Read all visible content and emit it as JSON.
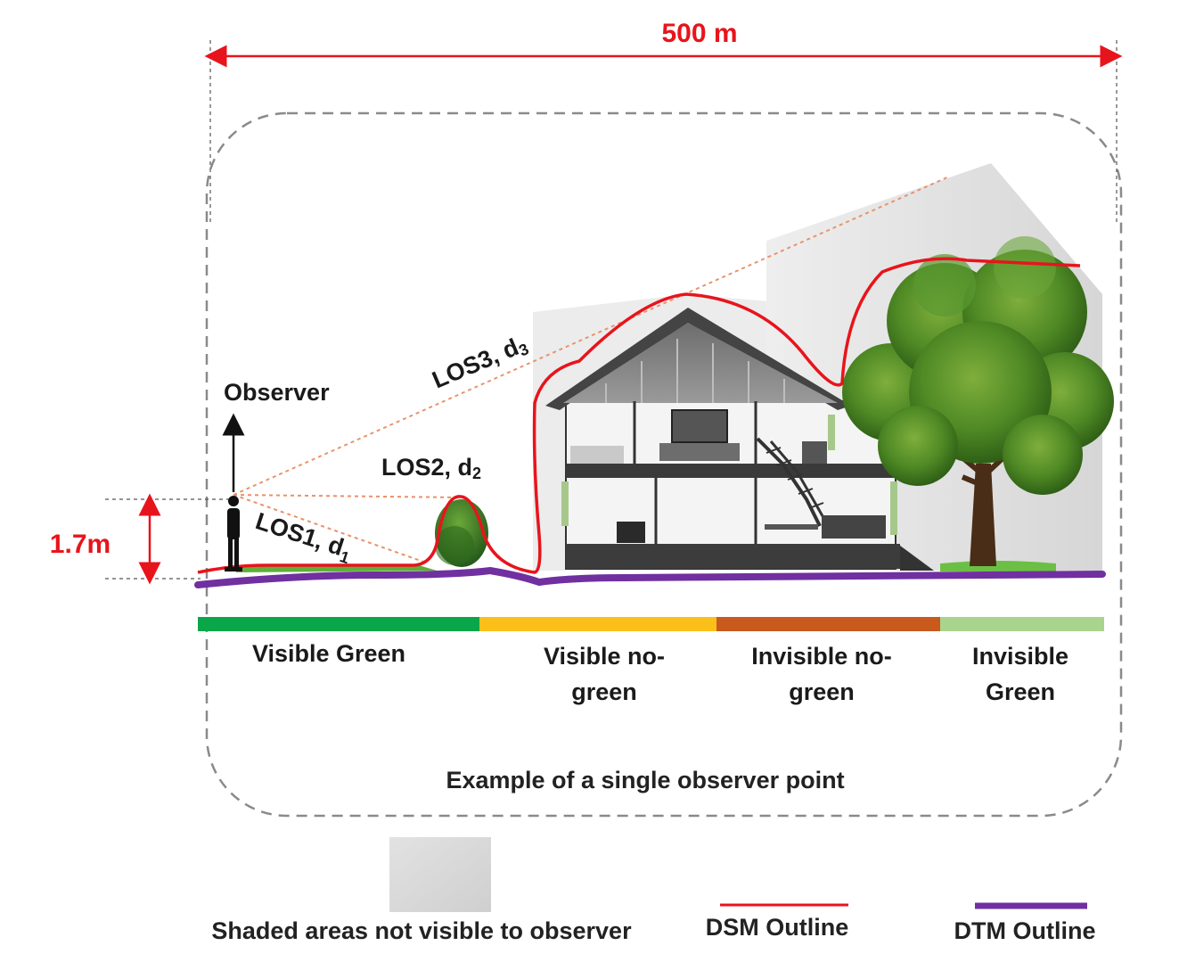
{
  "dimension": {
    "width_label": "500 m",
    "height_label": "1.7m"
  },
  "observer": {
    "label": "Observer"
  },
  "lines_of_sight": [
    {
      "label": "LOS1, d",
      "subscript": "1"
    },
    {
      "label": "LOS2, d",
      "subscript": "2"
    },
    {
      "label": "LOS3, d",
      "subscript": "3"
    }
  ],
  "zones": [
    {
      "line1": "Visible Green",
      "line2": "",
      "color": "#0aa64a"
    },
    {
      "line1": "Visible no-",
      "line2": "green",
      "color": "#fbbf1a"
    },
    {
      "line1": "Invisible no-",
      "line2": "green",
      "color": "#c75a1c"
    },
    {
      "line1": "Invisible",
      "line2": "Green",
      "color": "#a9d48e"
    }
  ],
  "caption": "Example of a single observer point",
  "legend": {
    "shaded": "Shaded areas not visible to observer",
    "dsm": "DSM Outline",
    "dtm": "DTM Outline",
    "dsm_color": "#e8141c",
    "dtm_color": "#7030a0"
  }
}
